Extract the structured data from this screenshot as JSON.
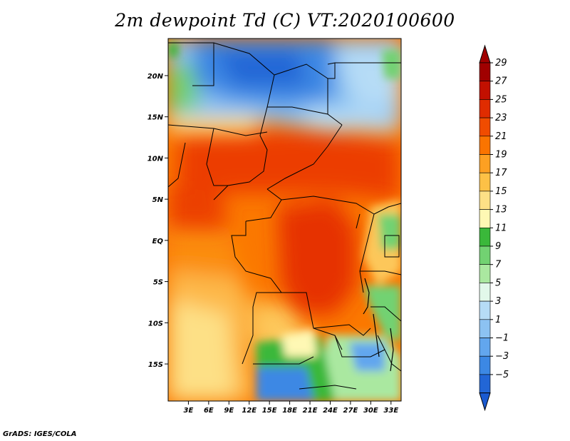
{
  "title": "2m dewpoint Td (C) VT:2020100600",
  "footer": "GrADS: IGES/COLA",
  "map": {
    "lon_range": [
      0,
      34.5
    ],
    "lat_range": [
      -19.5,
      24.5
    ],
    "lat_ticks": [
      {
        "label": "20N",
        "value": 20
      },
      {
        "label": "15N",
        "value": 15
      },
      {
        "label": "10N",
        "value": 10
      },
      {
        "label": "5N",
        "value": 5
      },
      {
        "label": "EQ",
        "value": 0
      },
      {
        "label": "5S",
        "value": -5
      },
      {
        "label": "10S",
        "value": -10
      },
      {
        "label": "15S",
        "value": -15
      }
    ],
    "lon_ticks": [
      {
        "label": "3E",
        "value": 3
      },
      {
        "label": "6E",
        "value": 6
      },
      {
        "label": "9E",
        "value": 9
      },
      {
        "label": "12E",
        "value": 12
      },
      {
        "label": "15E",
        "value": 15
      },
      {
        "label": "18E",
        "value": 18
      },
      {
        "label": "21E",
        "value": 21
      },
      {
        "label": "24E",
        "value": 24
      },
      {
        "label": "27E",
        "value": 27
      },
      {
        "label": "30E",
        "value": 30
      },
      {
        "label": "33E",
        "value": 33
      }
    ]
  },
  "colorbar": {
    "levels": [
      {
        "label": "29",
        "value": 29,
        "color": "#a00000"
      },
      {
        "label": "27",
        "value": 27,
        "color": "#c21000"
      },
      {
        "label": "25",
        "value": 25,
        "color": "#e02c00"
      },
      {
        "label": "23",
        "value": 23,
        "color": "#f04c00"
      },
      {
        "label": "21",
        "value": 21,
        "color": "#fa7400"
      },
      {
        "label": "19",
        "value": 19,
        "color": "#fda022"
      },
      {
        "label": "17",
        "value": 17,
        "color": "#fdc146"
      },
      {
        "label": "15",
        "value": 15,
        "color": "#fde086"
      },
      {
        "label": "13",
        "value": 13,
        "color": "#fef8b4"
      },
      {
        "label": "11",
        "value": 11,
        "color": "#3ab83a"
      },
      {
        "label": "9",
        "value": 9,
        "color": "#72d272"
      },
      {
        "label": "7",
        "value": 7,
        "color": "#aae8a0"
      },
      {
        "label": "5",
        "value": 5,
        "color": "#e2f8ea"
      },
      {
        "label": "3",
        "value": 3,
        "color": "#b6dcf6"
      },
      {
        "label": "1",
        "value": 1,
        "color": "#8cc2f2"
      },
      {
        "label": "−1",
        "value": -1,
        "color": "#62a6ee"
      },
      {
        "label": "−3",
        "value": -3,
        "color": "#3c88e4"
      },
      {
        "label": "−5",
        "value": -5,
        "color": "#2266d6"
      }
    ],
    "overflow_high_color": "#a00000",
    "overflow_low_color": "#1a5ad0"
  }
}
